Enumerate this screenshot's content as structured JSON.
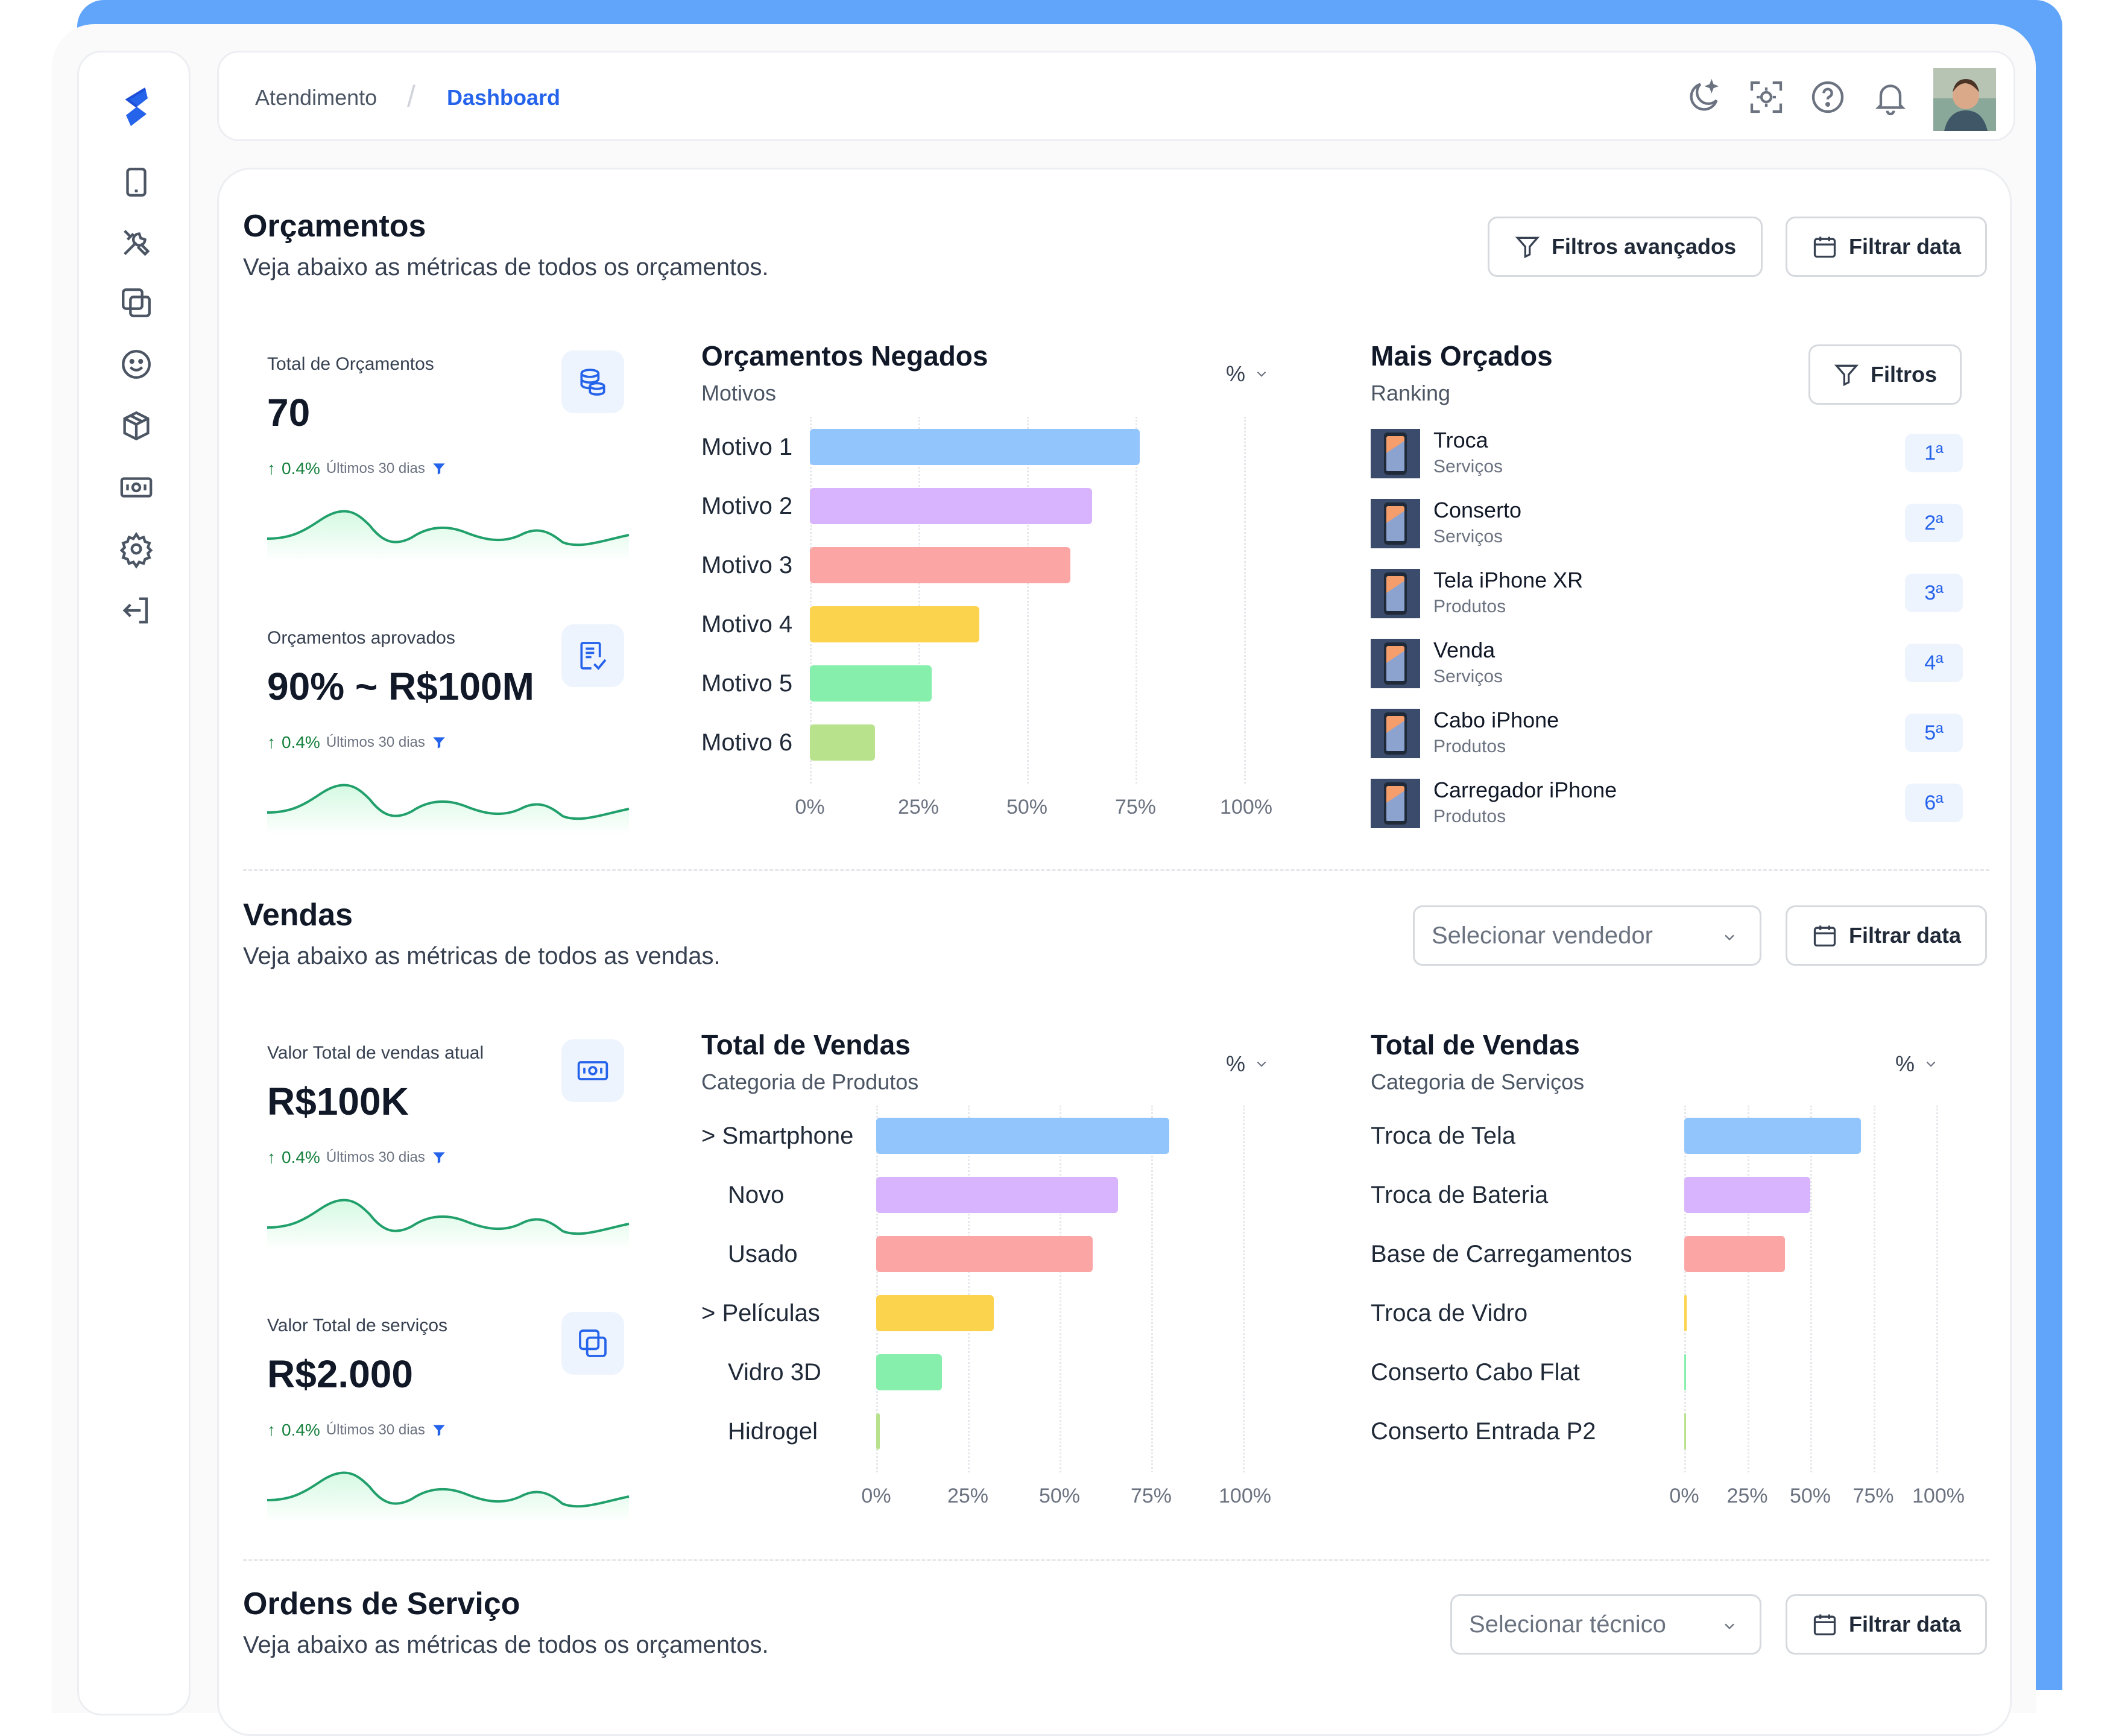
{
  "header": {
    "breadcrumb": [
      "Atendimento",
      "Dashboard"
    ],
    "breadcrumb_separator": "/",
    "icons": [
      "theme-moon-icon",
      "face-scan-icon",
      "help-icon",
      "bell-icon"
    ]
  },
  "sidebar": {
    "items": [
      "tablet-icon",
      "tools-icon",
      "copy-icon",
      "smile-icon",
      "box-icon",
      "money-icon",
      "settings-icon",
      "logout-icon"
    ]
  },
  "colors": {
    "accent": "#2563eb",
    "trend_green": "#15803d",
    "series": [
      "#93c5fd",
      "#d8b4fe",
      "#fca5a5",
      "#fcd34d",
      "#86efac",
      "#b9e28c"
    ]
  },
  "orcamentos": {
    "title": "Orçamentos",
    "subtitle": "Veja abaixo as métricas de todos os orçamentos.",
    "btn_filters": "Filtros avançados",
    "btn_date": "Filtrar data",
    "kpi1": {
      "label": "Total de Orçamentos",
      "value": "70",
      "trend": "0.4%",
      "period": "Últimos 30 dias"
    },
    "kpi2": {
      "label": "Orçamentos aprovados",
      "value": "90% ~ R$100M",
      "trend": "0.4%",
      "period": "Últimos 30 dias"
    },
    "negados": {
      "title": "Orçamentos Negados",
      "subtitle": "Motivos",
      "unit_toggle": "%"
    },
    "ranking": {
      "title": "Mais Orçados",
      "subtitle": "Ranking",
      "btn_filters": "Filtros",
      "items": [
        {
          "name": "Troca",
          "type": "Serviços",
          "rank": "1ª"
        },
        {
          "name": "Conserto",
          "type": "Serviços",
          "rank": "2ª"
        },
        {
          "name": "Tela iPhone XR",
          "type": "Produtos",
          "rank": "3ª"
        },
        {
          "name": "Venda",
          "type": "Serviços",
          "rank": "4ª"
        },
        {
          "name": "Cabo iPhone",
          "type": "Produtos",
          "rank": "5ª"
        },
        {
          "name": "Carregador iPhone",
          "type": "Produtos",
          "rank": "6ª"
        }
      ]
    }
  },
  "vendas": {
    "title": "Vendas",
    "subtitle": "Veja abaixo as métricas de todos as vendas.",
    "select_placeholder": "Selecionar vendedor",
    "btn_date": "Filtrar data",
    "kpi1": {
      "label": "Valor Total de vendas atual",
      "value": "R$100K",
      "trend": "0.4%",
      "period": "Últimos 30 dias"
    },
    "kpi2": {
      "label": "Valor Total de serviços",
      "value": "R$2.000",
      "trend": "0.4%",
      "period": "Últimos 30 dias"
    },
    "produtos": {
      "title": "Total de Vendas",
      "subtitle": "Categoria de Produtos",
      "unit_toggle": "%"
    },
    "servicos": {
      "title": "Total de Vendas",
      "subtitle": "Categoria de Serviços",
      "unit_toggle": "%"
    }
  },
  "ordens": {
    "title": "Ordens de Serviço",
    "subtitle": "Veja abaixo as métricas de todos os orçamentos.",
    "select_placeholder": "Selecionar técnico",
    "btn_date": "Filtrar data"
  },
  "chart_data": [
    {
      "type": "bar",
      "orientation": "horizontal",
      "title": "Orçamentos Negados",
      "subtitle": "Motivos",
      "categories": [
        "Motivo 1",
        "Motivo 2",
        "Motivo 3",
        "Motivo 4",
        "Motivo 5",
        "Motivo 6"
      ],
      "values": [
        76,
        65,
        60,
        39,
        28,
        15
      ],
      "xlim": [
        0,
        100
      ],
      "xticks": [
        "0%",
        "25%",
        "50%",
        "75%",
        "100%"
      ],
      "grid": true
    },
    {
      "type": "bar",
      "orientation": "horizontal",
      "title": "Total de Vendas",
      "subtitle": "Categoria de Produtos",
      "categories": [
        "> Smartphone",
        "Novo",
        "Usado",
        "> Películas",
        "Vidro 3D",
        "Hidrogel"
      ],
      "values": [
        80,
        66,
        59,
        32,
        18,
        1
      ],
      "xlim": [
        0,
        100
      ],
      "xticks": [
        "0%",
        "25%",
        "50%",
        "75%",
        "100%"
      ],
      "grid": true
    },
    {
      "type": "bar",
      "orientation": "horizontal",
      "title": "Total de Vendas",
      "subtitle": "Categoria de Serviços",
      "categories": [
        "Troca de Tela",
        "Troca de Bateria",
        "Base de Carregamentos",
        "Troca de Vidro",
        "Conserto Cabo Flat",
        "Conserto Entrada P2"
      ],
      "values": [
        70,
        50,
        40,
        1,
        0.5,
        0.5
      ],
      "xlim": [
        0,
        100
      ],
      "xticks": [
        "0%",
        "25%",
        "50%",
        "75%",
        "100%"
      ],
      "grid": true
    }
  ]
}
